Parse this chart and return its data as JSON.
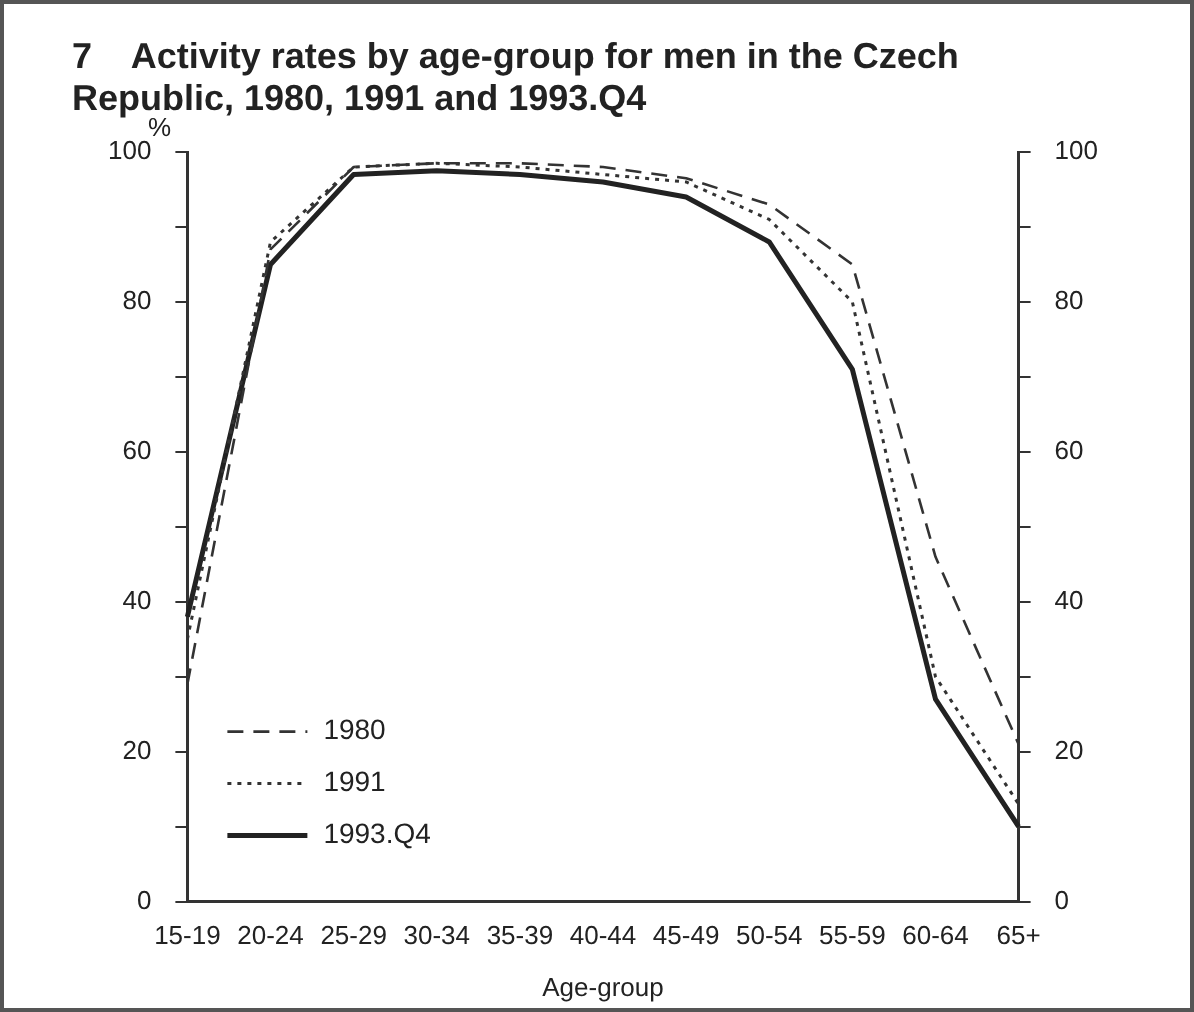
{
  "chart_data": {
    "type": "line",
    "title": "7    Activity rates by age-group for men in the Czech Republic, 1980, 1991 and 1993.Q4",
    "xlabel": "Age-group",
    "ylabel": "%",
    "categories": [
      "15-19",
      "20-24",
      "25-29",
      "30-34",
      "35-39",
      "40-44",
      "45-49",
      "50-54",
      "55-59",
      "60-64",
      "65+"
    ],
    "series": [
      {
        "name": "1980",
        "color": "#333333",
        "line_style": "dashed",
        "values": [
          29,
          87,
          98,
          98.5,
          98.5,
          98,
          96.5,
          93,
          85,
          46,
          21
        ]
      },
      {
        "name": "1991",
        "color": "#333333",
        "line_style": "dotted",
        "values": [
          35,
          88,
          98,
          98.5,
          98,
          97,
          96,
          91,
          80,
          30,
          13
        ]
      },
      {
        "name": "1993.Q4",
        "color": "#222222",
        "line_style": "solid",
        "values": [
          38,
          85,
          97,
          97.5,
          97,
          96,
          94,
          88,
          71,
          27,
          10
        ]
      }
    ],
    "ylim": [
      0,
      100
    ],
    "yticks": [
      0,
      {
        "value": 10,
        "label": null
      },
      20,
      {
        "value": 30,
        "label": null
      },
      40,
      {
        "value": 50,
        "label": null
      },
      60,
      {
        "value": 70,
        "label": null
      },
      80,
      {
        "value": 90,
        "label": null
      },
      100
    ],
    "y2lim": [
      0,
      100
    ],
    "y2ticks": [
      0,
      {
        "value": 10,
        "label": null
      },
      20,
      {
        "value": 30,
        "label": null
      },
      40,
      {
        "value": 50,
        "label": null
      },
      60,
      {
        "value": 70,
        "label": null
      },
      80,
      {
        "value": 90,
        "label": null
      },
      100
    ],
    "grid": false,
    "legend": "bottom left",
    "marker": "none"
  }
}
